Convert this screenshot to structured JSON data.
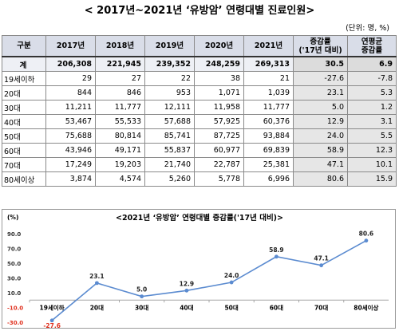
{
  "title": "< 2017년~2021년 ‘유방암’ 연령대별 진료인원>",
  "unit": "(단위: 명, %)",
  "table": {
    "headers": [
      "구분",
      "2017년",
      "2018년",
      "2019년",
      "2020년",
      "2021년",
      "증감률\n('17년 대비)",
      "연평균\n증감률"
    ],
    "header_line1": [
      "구분",
      "2017년",
      "2018년",
      "2019년",
      "2020년",
      "2021년",
      "증감률",
      "연평균"
    ],
    "header_line2": [
      "",
      "",
      "",
      "",
      "",
      "",
      "('17년 대비)",
      "증감률"
    ],
    "rows": [
      [
        "계",
        "206,308",
        "221,945",
        "239,352",
        "248,259",
        "269,313",
        "30.5",
        "6.9"
      ],
      [
        "19세이하",
        "29",
        "27",
        "22",
        "38",
        "21",
        "-27.6",
        "-7.8"
      ],
      [
        "20대",
        "844",
        "846",
        "953",
        "1,071",
        "1,039",
        "23.1",
        "5.3"
      ],
      [
        "30대",
        "11,211",
        "11,777",
        "12,111",
        "11,958",
        "11,777",
        "5.0",
        "1.2"
      ],
      [
        "40대",
        "53,467",
        "55,533",
        "57,688",
        "57,925",
        "60,376",
        "12.9",
        "3.1"
      ],
      [
        "50대",
        "75,688",
        "80,814",
        "85,741",
        "87,725",
        "93,884",
        "24.0",
        "5.5"
      ],
      [
        "60대",
        "43,946",
        "49,171",
        "55,837",
        "60,977",
        "69,839",
        "58.9",
        "12.3"
      ],
      [
        "70대",
        "17,249",
        "19,203",
        "21,740",
        "22,787",
        "25,381",
        "47.1",
        "10.1"
      ],
      [
        "80세이상",
        "3,874",
        "4,574",
        "5,260",
        "5,778",
        "6,996",
        "80.6",
        "15.9"
      ]
    ]
  },
  "chart_data": {
    "type": "line",
    "title": "<2021년 ‘유방암’ 연령대별 증감률('17년 대비)>",
    "yunit": "(%)",
    "categories": [
      "19세이하",
      "20대",
      "30대",
      "40대",
      "50대",
      "60대",
      "70대",
      "80세이상"
    ],
    "values": [
      -27.6,
      23.1,
      5.0,
      12.9,
      24.0,
      58.9,
      47.1,
      80.6
    ],
    "value_labels": [
      "-27.6",
      "23.1",
      "5.0",
      "12.9",
      "24.0",
      "58.9",
      "47.1",
      "80.6"
    ],
    "yticks": [
      -30.0,
      -10.0,
      10.0,
      30.0,
      50.0,
      70.0,
      90.0
    ],
    "ytick_labels": [
      "-30.0",
      "-10.0",
      "10.0",
      "30.0",
      "50.0",
      "70.0",
      "90.0"
    ],
    "ylim": [
      -30,
      90
    ],
    "grid": false,
    "colors": {
      "line": "#5b8bd0",
      "marker": "#5b8bd0",
      "negative_label": "#e0301e",
      "negative_tick": "#e0301e",
      "axis": "#a6a6a6"
    }
  }
}
